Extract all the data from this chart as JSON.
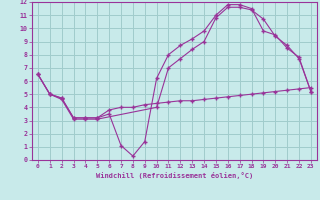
{
  "xlabel": "Windchill (Refroidissement éolien,°C)",
  "background_color": "#c8eaea",
  "grid_color": "#a0cccc",
  "line_color": "#993399",
  "xlim": [
    -0.5,
    23.5
  ],
  "ylim": [
    0,
    12
  ],
  "xticks": [
    0,
    1,
    2,
    3,
    4,
    5,
    6,
    7,
    8,
    9,
    10,
    11,
    12,
    13,
    14,
    15,
    16,
    17,
    18,
    19,
    20,
    21,
    22,
    23
  ],
  "yticks": [
    0,
    1,
    2,
    3,
    4,
    5,
    6,
    7,
    8,
    9,
    10,
    11,
    12
  ],
  "curve1_x": [
    0,
    1,
    2,
    3,
    4,
    5,
    6,
    7,
    8,
    9,
    10,
    11,
    12,
    13,
    14,
    15,
    16,
    17,
    18,
    19,
    20,
    21,
    22,
    23
  ],
  "curve1_y": [
    6.5,
    5.0,
    4.7,
    3.2,
    3.2,
    3.2,
    3.8,
    4.0,
    4.0,
    4.2,
    4.3,
    4.4,
    4.5,
    4.5,
    4.6,
    4.7,
    4.8,
    4.9,
    5.0,
    5.1,
    5.2,
    5.3,
    5.4,
    5.5
  ],
  "curve2_x": [
    0,
    1,
    2,
    3,
    4,
    5,
    6,
    7,
    8,
    9,
    10,
    11,
    12,
    13,
    14,
    15,
    16,
    17,
    18,
    19,
    20,
    21,
    22,
    23
  ],
  "curve2_y": [
    6.5,
    5.0,
    4.7,
    3.2,
    3.2,
    3.2,
    3.5,
    1.1,
    0.3,
    1.4,
    6.2,
    8.0,
    8.7,
    9.2,
    9.8,
    11.0,
    11.8,
    11.8,
    11.5,
    9.8,
    9.5,
    8.5,
    7.8,
    5.2
  ],
  "curve3_x": [
    0,
    1,
    2,
    3,
    4,
    5,
    10,
    11,
    12,
    13,
    14,
    15,
    16,
    17,
    18,
    19,
    20,
    21,
    22,
    23
  ],
  "curve3_y": [
    6.5,
    5.0,
    4.6,
    3.1,
    3.1,
    3.1,
    4.0,
    7.0,
    7.7,
    8.4,
    9.0,
    10.8,
    11.6,
    11.6,
    11.4,
    10.7,
    9.4,
    8.7,
    7.7,
    5.2
  ]
}
